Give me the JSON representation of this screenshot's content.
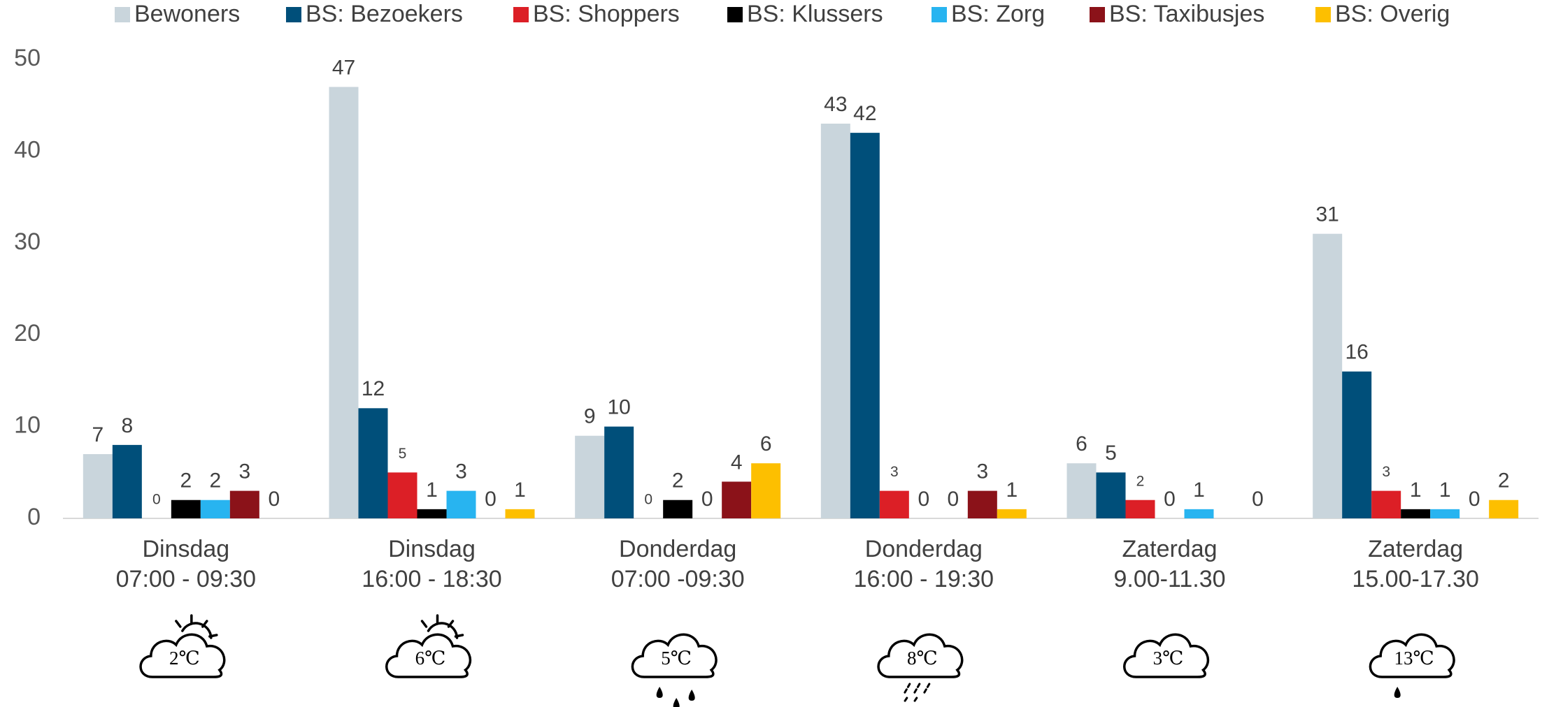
{
  "chart_data": {
    "type": "bar",
    "categories": [
      [
        "Dinsdag",
        "07:00 - 09:30"
      ],
      [
        "Dinsdag",
        "16:00 - 18:30"
      ],
      [
        "Donderdag",
        "07:00 -09:30"
      ],
      [
        "Donderdag",
        "16:00 - 19:30"
      ],
      [
        "Zaterdag",
        "9.00-11.30"
      ],
      [
        "Zaterdag",
        "15.00-17.30"
      ]
    ],
    "weather": [
      "2℃",
      "6℃",
      "5℃",
      "8℃",
      "3℃",
      "13℃"
    ],
    "series": [
      {
        "name": "Bewoners",
        "color": "#c9d5dc",
        "values": [
          7,
          47,
          9,
          43,
          6,
          31
        ]
      },
      {
        "name": "BS: Bezoekers",
        "color": "#004f7a",
        "values": [
          8,
          12,
          10,
          42,
          5,
          16
        ]
      },
      {
        "name": "BS: Shoppers",
        "color": "#dc1f26",
        "values": [
          0,
          5,
          0,
          3,
          2,
          3
        ]
      },
      {
        "name": "BS: Klussers",
        "color": "#000000",
        "values": [
          2,
          1,
          2,
          0,
          0,
          1
        ]
      },
      {
        "name": "BS: Zorg",
        "color": "#28b4f0",
        "values": [
          2,
          3,
          0,
          0,
          1,
          1
        ]
      },
      {
        "name": "BS: Taxibusjes",
        "color": "#8b1219",
        "values": [
          3,
          0,
          4,
          3,
          null,
          0
        ]
      },
      {
        "name": "BS: Overig",
        "color": "#fdbf00",
        "values": [
          0,
          1,
          6,
          1,
          0,
          2
        ]
      }
    ],
    "ylim": [
      0,
      50
    ],
    "yticks": [
      0,
      10,
      20,
      30,
      40,
      50
    ],
    "grid": false,
    "legend": "top"
  }
}
